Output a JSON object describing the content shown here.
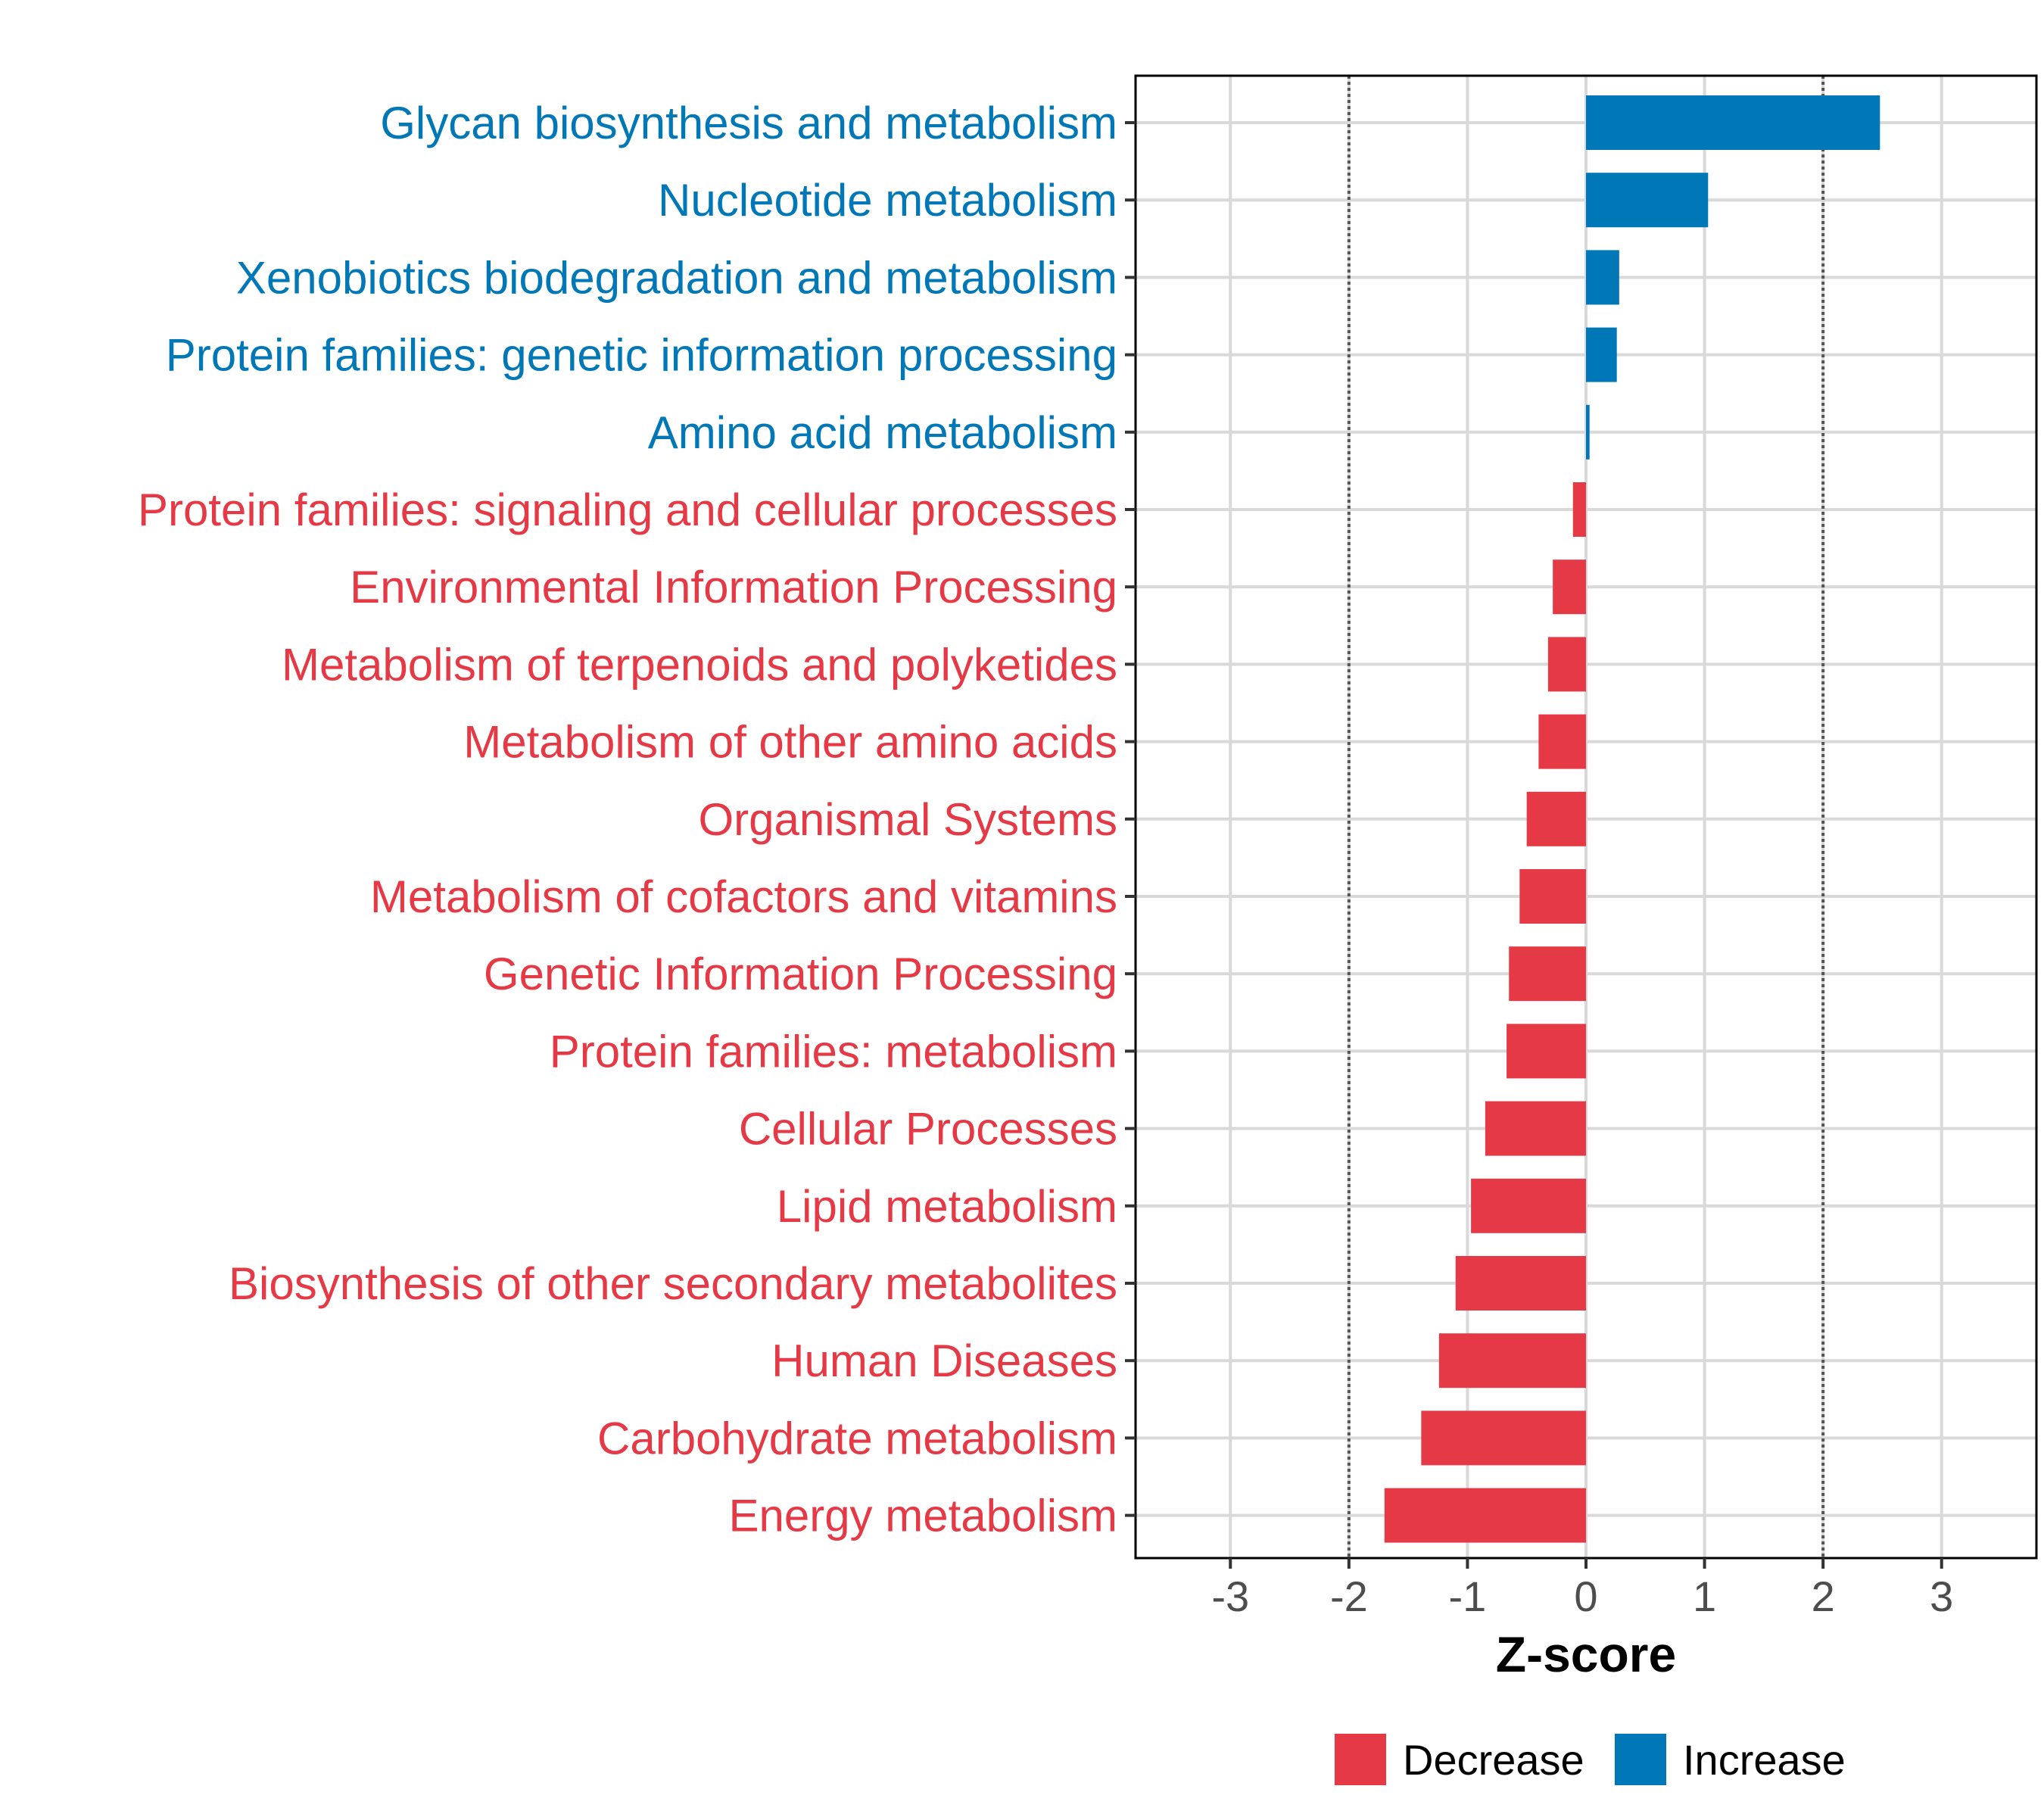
{
  "colors": {
    "decrease": "#E63946",
    "increase": "#0077B6",
    "grid": "#D9D9D9",
    "panel_border": "#000000",
    "threshold_line": "#555555"
  },
  "chart_data": {
    "type": "bar",
    "orientation": "horizontal",
    "xlabel": "Z-score",
    "xlim": [
      -3.8,
      3.8
    ],
    "x_ticks": [
      -3,
      -2,
      -1,
      0,
      1,
      2,
      3
    ],
    "x_tick_labels": [
      "-3",
      "-2",
      "-1",
      "0",
      "1",
      "2",
      "3"
    ],
    "threshold_lines": [
      -2,
      2
    ],
    "grid": true,
    "legend": {
      "position": "bottom",
      "entries": [
        {
          "label": "Decrease",
          "color_key": "decrease"
        },
        {
          "label": "Increase",
          "color_key": "increase"
        }
      ]
    },
    "categories": [
      "Glycan biosynthesis and metabolism",
      "Nucleotide metabolism",
      "Xenobiotics biodegradation and metabolism",
      "Protein families: genetic information processing",
      "Amino acid metabolism",
      "Protein families: signaling and cellular processes",
      "Environmental Information Processing",
      "Metabolism of terpenoids and polyketides",
      "Metabolism of other amino acids",
      "Organismal Systems",
      "Metabolism of cofactors and vitamins",
      "Genetic Information Processing",
      "Protein families: metabolism",
      "Cellular Processes",
      "Lipid metabolism",
      "Biosynthesis of other secondary metabolites",
      "Human Diseases",
      "Carbohydrate metabolism",
      "Energy metabolism"
    ],
    "values": [
      2.48,
      1.03,
      0.28,
      0.26,
      0.03,
      -0.11,
      -0.28,
      -0.32,
      -0.4,
      -0.5,
      -0.56,
      -0.65,
      -0.67,
      -0.85,
      -0.97,
      -1.1,
      -1.24,
      -1.39,
      -1.7
    ],
    "groups": [
      "Increase",
      "Increase",
      "Increase",
      "Increase",
      "Increase",
      "Decrease",
      "Decrease",
      "Decrease",
      "Decrease",
      "Decrease",
      "Decrease",
      "Decrease",
      "Decrease",
      "Decrease",
      "Decrease",
      "Decrease",
      "Decrease",
      "Decrease",
      "Decrease"
    ]
  }
}
